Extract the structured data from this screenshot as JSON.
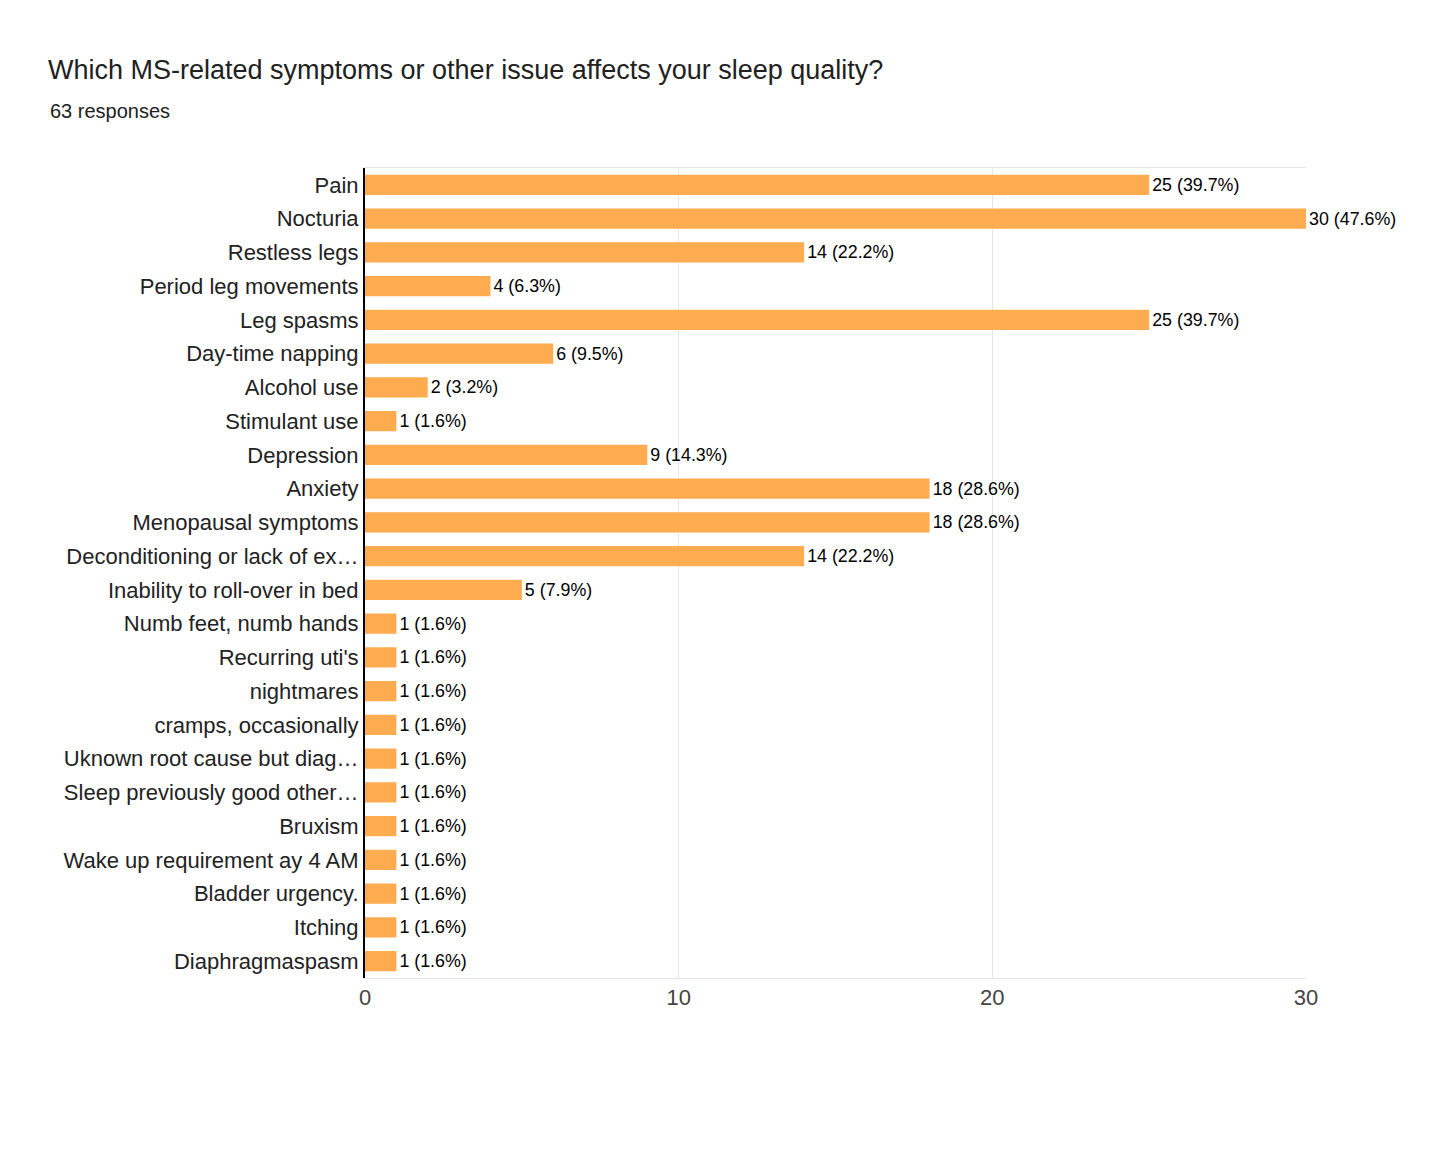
{
  "chart_data": {
    "type": "bar",
    "orientation": "horizontal",
    "title": "Which MS-related symptoms or other issue affects your sleep quality?",
    "subtitle": "63 responses",
    "categories": [
      "Pain",
      "Nocturia",
      "Restless legs",
      "Period leg movements",
      "Leg spasms",
      "Day-time napping",
      "Alcohol use",
      "Stimulant use",
      "Depression",
      "Anxiety",
      "Menopausal symptoms",
      "Deconditioning or lack of ex…",
      "Inability to roll-over in bed",
      "Numb feet, numb hands",
      "Recurring uti's",
      "nightmares",
      "cramps, occasionally",
      "Uknown root cause but diag…",
      "Sleep previously good other…",
      "Bruxism",
      "Wake up requirement ay 4 AM",
      "Bladder urgency.",
      "Itching",
      "Diaphragmaspasm"
    ],
    "values": [
      25,
      30,
      14,
      4,
      25,
      6,
      2,
      1,
      9,
      18,
      18,
      14,
      5,
      1,
      1,
      1,
      1,
      1,
      1,
      1,
      1,
      1,
      1,
      1
    ],
    "value_labels": [
      "25 (39.7%)",
      "30 (47.6%)",
      "14 (22.2%)",
      "4 (6.3%)",
      "25 (39.7%)",
      "6 (9.5%)",
      "2 (3.2%)",
      "1 (1.6%)",
      "9 (14.3%)",
      "18 (28.6%)",
      "18 (28.6%)",
      "14 (22.2%)",
      "5 (7.9%)",
      "1 (1.6%)",
      "1 (1.6%)",
      "1 (1.6%)",
      "1 (1.6%)",
      "1 (1.6%)",
      "1 (1.6%)",
      "1 (1.6%)",
      "1 (1.6%)",
      "1 (1.6%)",
      "1 (1.6%)",
      "1 (1.6%)"
    ],
    "data_labels": true,
    "color": "#ffab4f",
    "xlim": [
      0,
      30
    ],
    "xticks": [
      0,
      10,
      20,
      30
    ],
    "grid": true
  }
}
